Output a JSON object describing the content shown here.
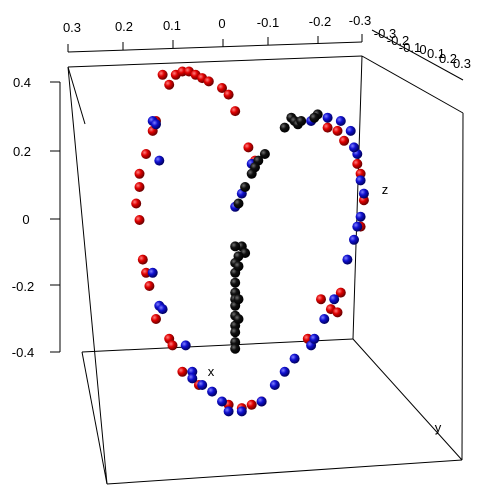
{
  "chart_data": {
    "type": "scatter",
    "projection": "3d",
    "grid": false,
    "legend": "none",
    "axes": {
      "x": {
        "label": "x",
        "ticks": [
          "0.3",
          "0.2",
          "0.1",
          "0",
          "-0.1",
          "-0.2",
          "-0.3"
        ]
      },
      "y": {
        "label": "y",
        "ticks": [
          "-0.3",
          "-0.2",
          "-0.1",
          "0",
          "0.1",
          "0.2",
          "0.3"
        ]
      },
      "z": {
        "label": "z",
        "ticks": [
          "0.4",
          "0.2",
          "0",
          "-0.2",
          "-0.4"
        ]
      }
    },
    "series": [
      {
        "color": "#cc0000",
        "points": [
          {
            "x": -0.18,
            "y": 0.3,
            "z": 0.44
          },
          {
            "x": -0.16,
            "y": 0.3,
            "z": 0.41
          },
          {
            "x": -0.14,
            "y": 0.3,
            "z": 0.44
          },
          {
            "x": -0.12,
            "y": 0.3,
            "z": 0.45
          },
          {
            "x": -0.1,
            "y": 0.3,
            "z": 0.45
          },
          {
            "x": -0.08,
            "y": 0.3,
            "z": 0.44
          },
          {
            "x": -0.06,
            "y": 0.3,
            "z": 0.43
          },
          {
            "x": -0.04,
            "y": 0.3,
            "z": 0.42
          },
          {
            "x": 0.0,
            "y": 0.3,
            "z": 0.4
          },
          {
            "x": 0.02,
            "y": 0.3,
            "z": 0.38
          },
          {
            "x": 0.04,
            "y": 0.3,
            "z": 0.33
          },
          {
            "x": 0.08,
            "y": 0.3,
            "z": 0.22
          },
          {
            "x": 0.1,
            "y": 0.3,
            "z": 0.18
          },
          {
            "x": -0.2,
            "y": 0.3,
            "z": 0.3
          },
          {
            "x": -0.21,
            "y": 0.3,
            "z": 0.27
          },
          {
            "x": -0.23,
            "y": 0.3,
            "z": 0.2
          },
          {
            "x": -0.25,
            "y": 0.3,
            "z": 0.14
          },
          {
            "x": -0.25,
            "y": 0.3,
            "z": 0.1
          },
          {
            "x": -0.26,
            "y": 0.3,
            "z": 0.05
          },
          {
            "x": -0.25,
            "y": 0.3,
            "z": 0.0
          },
          {
            "x": -0.24,
            "y": 0.3,
            "z": -0.12
          },
          {
            "x": -0.23,
            "y": 0.3,
            "z": -0.16
          },
          {
            "x": -0.22,
            "y": 0.3,
            "z": -0.2
          },
          {
            "x": -0.2,
            "y": 0.3,
            "z": -0.3
          },
          {
            "x": -0.16,
            "y": 0.3,
            "z": -0.36
          },
          {
            "x": -0.15,
            "y": 0.3,
            "z": -0.38
          },
          {
            "x": -0.12,
            "y": 0.3,
            "z": -0.46
          },
          {
            "x": -0.07,
            "y": 0.3,
            "z": -0.5
          },
          {
            "x": 0.02,
            "y": 0.3,
            "z": -0.56
          },
          {
            "x": 0.06,
            "y": 0.3,
            "z": -0.57
          },
          {
            "x": 0.09,
            "y": 0.3,
            "z": -0.56
          },
          {
            "x": 0.12,
            "y": 0.3,
            "z": -0.55
          },
          {
            "x": 0.26,
            "y": 0.3,
            "z": -0.36
          },
          {
            "x": 0.3,
            "y": 0.3,
            "z": -0.24
          },
          {
            "x": 0.33,
            "y": 0.3,
            "z": -0.27
          },
          {
            "x": 0.35,
            "y": 0.3,
            "z": -0.28
          },
          {
            "x": 0.36,
            "y": 0.3,
            "z": -0.22
          },
          {
            "x": 0.42,
            "y": 0.3,
            "z": -0.02
          },
          {
            "x": 0.43,
            "y": 0.3,
            "z": 0.06
          },
          {
            "x": 0.42,
            "y": 0.3,
            "z": 0.14
          },
          {
            "x": 0.41,
            "y": 0.3,
            "z": 0.17
          },
          {
            "x": 0.37,
            "y": 0.3,
            "z": 0.24
          },
          {
            "x": 0.35,
            "y": 0.3,
            "z": 0.27
          },
          {
            "x": 0.32,
            "y": 0.3,
            "z": 0.28
          }
        ]
      },
      {
        "color": "#0000cc",
        "points": [
          {
            "x": -0.21,
            "y": 0.3,
            "z": 0.3
          },
          {
            "x": -0.2,
            "y": 0.3,
            "z": 0.29
          },
          {
            "x": -0.19,
            "y": 0.3,
            "z": 0.18
          },
          {
            "x": -0.21,
            "y": 0.3,
            "z": -0.16
          },
          {
            "x": -0.19,
            "y": 0.3,
            "z": -0.26
          },
          {
            "x": -0.18,
            "y": 0.3,
            "z": -0.27
          },
          {
            "x": -0.11,
            "y": 0.3,
            "z": -0.38
          },
          {
            "x": -0.09,
            "y": 0.3,
            "z": -0.46
          },
          {
            "x": -0.09,
            "y": 0.3,
            "z": -0.48
          },
          {
            "x": -0.06,
            "y": 0.3,
            "z": -0.5
          },
          {
            "x": -0.03,
            "y": 0.3,
            "z": -0.52
          },
          {
            "x": 0.0,
            "y": 0.3,
            "z": -0.55
          },
          {
            "x": 0.02,
            "y": 0.3,
            "z": -0.58
          },
          {
            "x": 0.06,
            "y": 0.3,
            "z": -0.58
          },
          {
            "x": 0.12,
            "y": 0.3,
            "z": -0.55
          },
          {
            "x": 0.16,
            "y": 0.3,
            "z": -0.5
          },
          {
            "x": 0.19,
            "y": 0.3,
            "z": -0.46
          },
          {
            "x": 0.22,
            "y": 0.3,
            "z": -0.42
          },
          {
            "x": 0.27,
            "y": 0.3,
            "z": -0.38
          },
          {
            "x": 0.28,
            "y": 0.3,
            "z": -0.36
          },
          {
            "x": 0.31,
            "y": 0.3,
            "z": -0.3
          },
          {
            "x": 0.34,
            "y": 0.3,
            "z": -0.24
          },
          {
            "x": 0.38,
            "y": 0.3,
            "z": -0.12
          },
          {
            "x": 0.4,
            "y": 0.3,
            "z": -0.06
          },
          {
            "x": 0.41,
            "y": 0.3,
            "z": -0.02
          },
          {
            "x": 0.42,
            "y": 0.3,
            "z": 0.01
          },
          {
            "x": 0.43,
            "y": 0.3,
            "z": 0.08
          },
          {
            "x": 0.42,
            "y": 0.3,
            "z": 0.12
          },
          {
            "x": 0.41,
            "y": 0.3,
            "z": 0.2
          },
          {
            "x": 0.4,
            "y": 0.3,
            "z": 0.22
          },
          {
            "x": 0.39,
            "y": 0.3,
            "z": 0.27
          },
          {
            "x": 0.36,
            "y": 0.3,
            "z": 0.3
          },
          {
            "x": 0.32,
            "y": 0.3,
            "z": 0.31
          },
          {
            "x": 0.27,
            "y": 0.3,
            "z": 0.3
          },
          {
            "x": 0.06,
            "y": 0.3,
            "z": 0.08
          },
          {
            "x": 0.04,
            "y": 0.3,
            "z": 0.04
          },
          {
            "x": 0.09,
            "y": 0.3,
            "z": 0.17
          }
        ]
      },
      {
        "color": "#000000",
        "points": [
          {
            "x": 0.21,
            "y": 0.3,
            "z": 0.31
          },
          {
            "x": 0.22,
            "y": 0.3,
            "z": 0.3
          },
          {
            "x": 0.23,
            "y": 0.3,
            "z": 0.29
          },
          {
            "x": 0.24,
            "y": 0.3,
            "z": 0.3
          },
          {
            "x": 0.29,
            "y": 0.3,
            "z": 0.32
          },
          {
            "x": 0.28,
            "y": 0.3,
            "z": 0.31
          },
          {
            "x": 0.19,
            "y": 0.3,
            "z": 0.28
          },
          {
            "x": 0.13,
            "y": 0.3,
            "z": 0.2
          },
          {
            "x": 0.11,
            "y": 0.3,
            "z": 0.18
          },
          {
            "x": 0.1,
            "y": 0.3,
            "z": 0.16
          },
          {
            "x": 0.09,
            "y": 0.3,
            "z": 0.14
          },
          {
            "x": 0.07,
            "y": 0.3,
            "z": 0.1
          },
          {
            "x": 0.05,
            "y": 0.3,
            "z": 0.05
          },
          {
            "x": 0.06,
            "y": 0.3,
            "z": -0.08
          },
          {
            "x": 0.07,
            "y": 0.3,
            "z": -0.1
          },
          {
            "x": 0.04,
            "y": 0.3,
            "z": -0.08
          },
          {
            "x": 0.05,
            "y": 0.3,
            "z": -0.11
          },
          {
            "x": 0.04,
            "y": 0.3,
            "z": -0.13
          },
          {
            "x": 0.04,
            "y": 0.3,
            "z": -0.16
          },
          {
            "x": 0.04,
            "y": 0.3,
            "z": -0.19
          },
          {
            "x": 0.04,
            "y": 0.3,
            "z": -0.22
          },
          {
            "x": 0.04,
            "y": 0.3,
            "z": -0.24
          },
          {
            "x": 0.04,
            "y": 0.3,
            "z": -0.26
          },
          {
            "x": 0.04,
            "y": 0.3,
            "z": -0.29
          },
          {
            "x": 0.04,
            "y": 0.3,
            "z": -0.32
          },
          {
            "x": 0.04,
            "y": 0.3,
            "z": -0.34
          },
          {
            "x": 0.04,
            "y": 0.3,
            "z": -0.37
          },
          {
            "x": 0.04,
            "y": 0.3,
            "z": -0.39
          },
          {
            "x": 0.05,
            "y": 0.3,
            "z": -0.14
          },
          {
            "x": 0.05,
            "y": 0.3,
            "z": -0.24
          },
          {
            "x": 0.05,
            "y": 0.3,
            "z": -0.3
          }
        ]
      }
    ]
  }
}
